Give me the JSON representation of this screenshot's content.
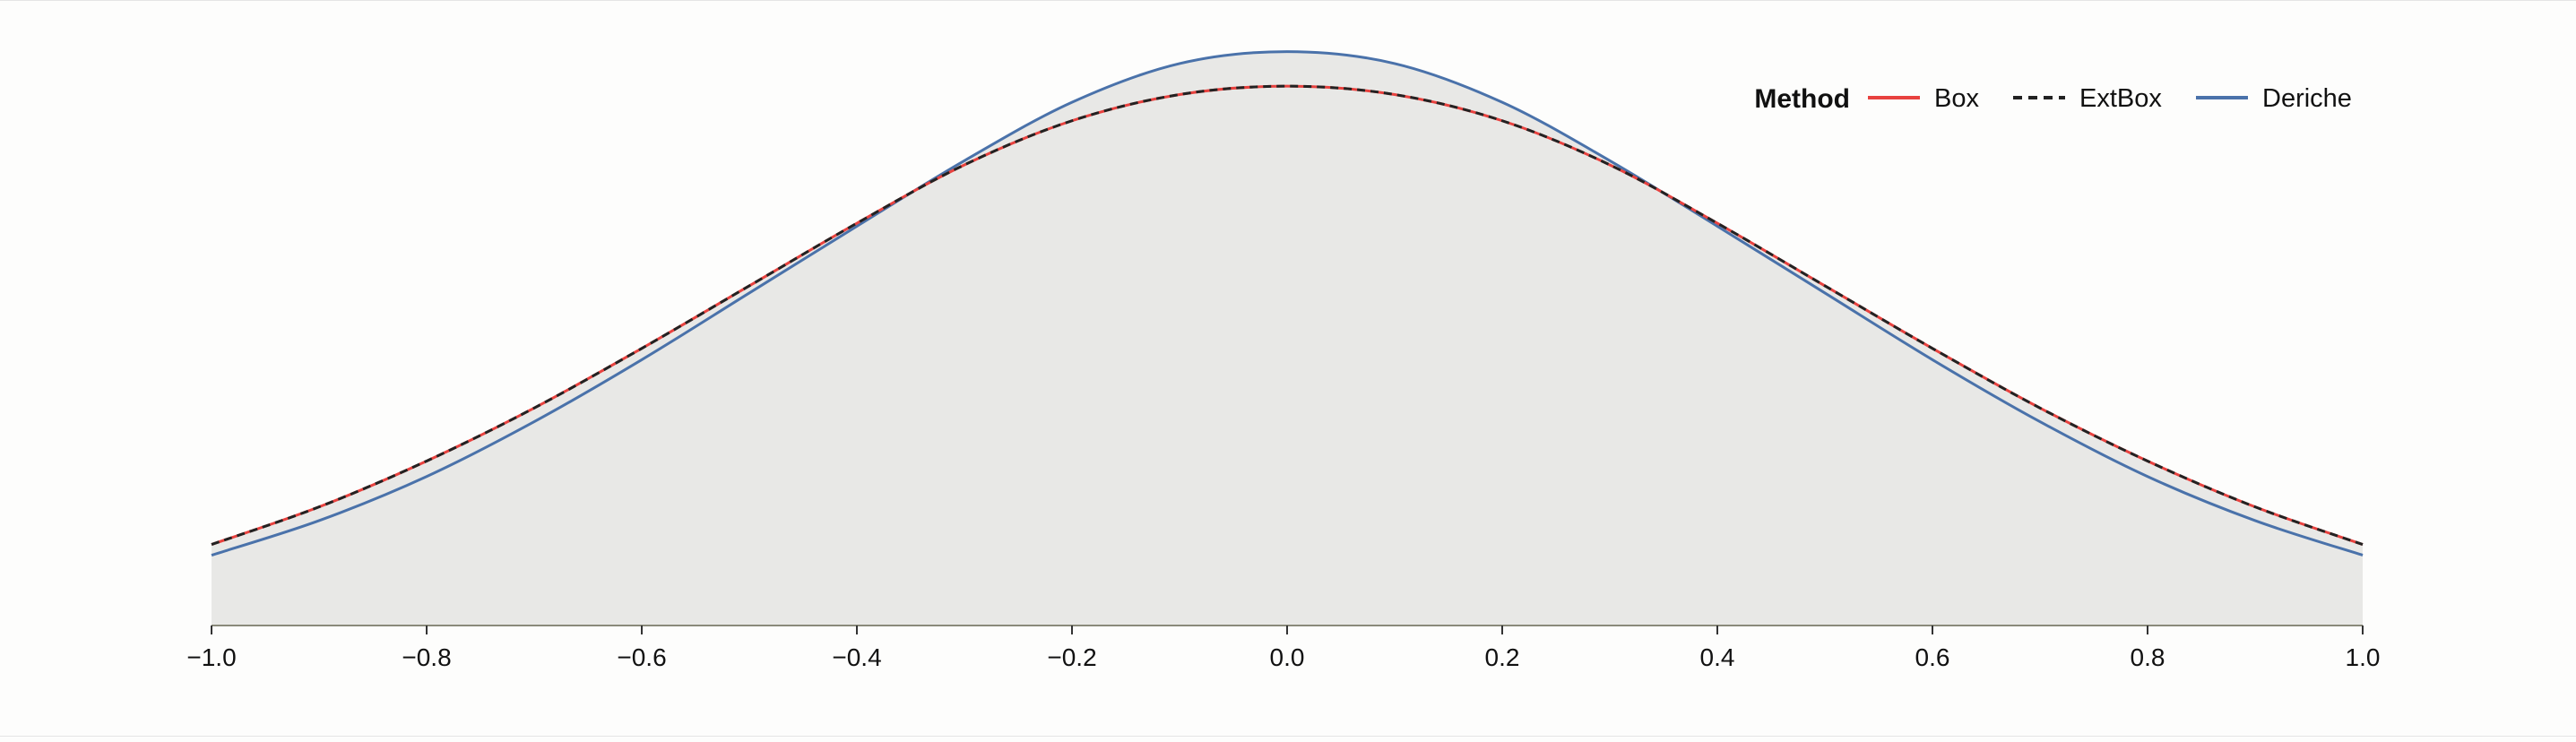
{
  "chart_data": {
    "type": "area",
    "title": "",
    "xlabel": "",
    "ylabel": "",
    "xlim": [
      -1.0,
      1.0
    ],
    "ylim": [
      0,
      1.0
    ],
    "x_ticks": [
      "−1.0",
      "−0.8",
      "−0.6",
      "−0.4",
      "−0.2",
      "0.0",
      "0.2",
      "0.4",
      "0.6",
      "0.8",
      "1.0"
    ],
    "x_tick_values": [
      -1.0,
      -0.8,
      -0.6,
      -0.4,
      -0.2,
      0.0,
      0.2,
      0.4,
      0.6,
      0.8,
      1.0
    ],
    "grid": false,
    "legend": {
      "title": "Method",
      "placement": "top-right",
      "entries": [
        "Box",
        "ExtBox",
        "Deriche"
      ]
    },
    "x": [
      -1.0,
      -0.9,
      -0.8,
      -0.7,
      -0.6,
      -0.5,
      -0.4,
      -0.3,
      -0.2,
      -0.1,
      0.0,
      0.1,
      0.2,
      0.3,
      0.4,
      0.5,
      0.6,
      0.7,
      0.8,
      0.9,
      1.0
    ],
    "series": [
      {
        "name": "Box",
        "color": "#e8423f",
        "style": "solid",
        "values": [
          0.136,
          0.199,
          0.276,
          0.365,
          0.465,
          0.57,
          0.675,
          0.773,
          0.847,
          0.891,
          0.905,
          0.891,
          0.847,
          0.773,
          0.675,
          0.57,
          0.465,
          0.365,
          0.276,
          0.199,
          0.136
        ]
      },
      {
        "name": "ExtBox",
        "color": "#222222",
        "style": "dashed",
        "values": [
          0.136,
          0.199,
          0.276,
          0.365,
          0.465,
          0.57,
          0.675,
          0.773,
          0.847,
          0.891,
          0.905,
          0.891,
          0.847,
          0.773,
          0.675,
          0.57,
          0.465,
          0.365,
          0.276,
          0.199,
          0.136
        ]
      },
      {
        "name": "Deriche",
        "color": "#4a72aa",
        "style": "solid",
        "values": [
          0.118,
          0.176,
          0.25,
          0.342,
          0.446,
          0.558,
          0.67,
          0.78,
          0.878,
          0.943,
          0.963,
          0.943,
          0.878,
          0.78,
          0.67,
          0.558,
          0.446,
          0.342,
          0.25,
          0.176,
          0.118
        ]
      }
    ],
    "fill_color": "#e8e8e6",
    "axis_color": "#8a8a7a"
  }
}
